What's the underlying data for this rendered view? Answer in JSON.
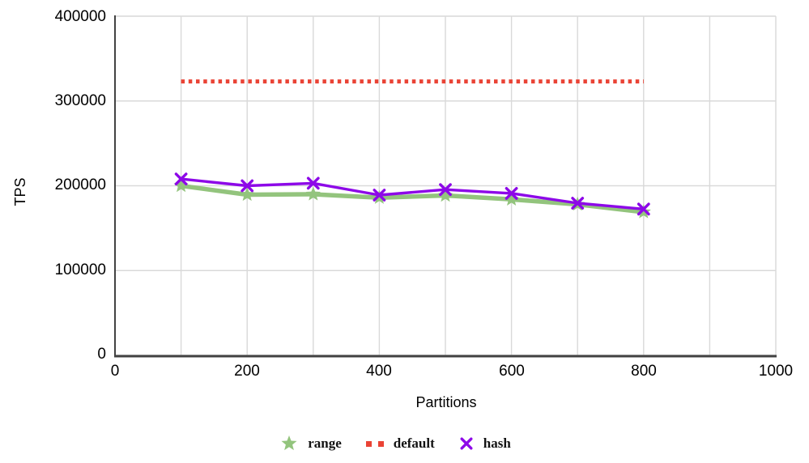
{
  "chart_data": {
    "type": "line",
    "title": "",
    "xlabel": "Partitions",
    "ylabel": "TPS",
    "xlim": [
      0,
      1000
    ],
    "ylim": [
      0,
      400000
    ],
    "x_gridline_step": 100,
    "grid": true,
    "background": "#ffffff",
    "gridline_color": "#d9d9d9",
    "axis_color": "#424242",
    "xticks": [
      0,
      200,
      400,
      600,
      800,
      1000
    ],
    "xtick_labels": [
      "0",
      "200",
      "400",
      "600",
      "800",
      "1000"
    ],
    "yticks": [
      400000,
      300000,
      200000,
      100000,
      0
    ],
    "ytick_labels": [
      "400000",
      "300000",
      "200000",
      "100000",
      "0"
    ],
    "x": [
      100,
      200,
      300,
      400,
      500,
      600,
      700,
      800
    ],
    "series": [
      {
        "name": "range",
        "color": "#93c47d",
        "marker": "star",
        "line_style": "solid",
        "line_width": 5.5,
        "values": [
          200000,
          189500,
          190000,
          186000,
          188500,
          184000,
          178000,
          169000
        ]
      },
      {
        "name": "default",
        "color": "#ea4335",
        "marker": "none",
        "line_style": "dotted",
        "line_width": 5,
        "values": [
          323000,
          323000,
          323000,
          323000,
          323000,
          323000,
          323000,
          323000
        ]
      },
      {
        "name": "hash",
        "color": "#8d08e8",
        "marker": "x",
        "line_style": "solid",
        "line_width": 3.4,
        "values": [
          208000,
          200000,
          203000,
          189000,
          195500,
          191000,
          179500,
          172500
        ]
      }
    ],
    "legend": {
      "position": "bottom",
      "items": [
        {
          "label": "range",
          "marker": "star",
          "color": "#93c47d"
        },
        {
          "label": "default",
          "marker": "dotted-squares",
          "color": "#ea4335"
        },
        {
          "label": "hash",
          "marker": "x",
          "color": "#8d08e8"
        }
      ]
    }
  }
}
